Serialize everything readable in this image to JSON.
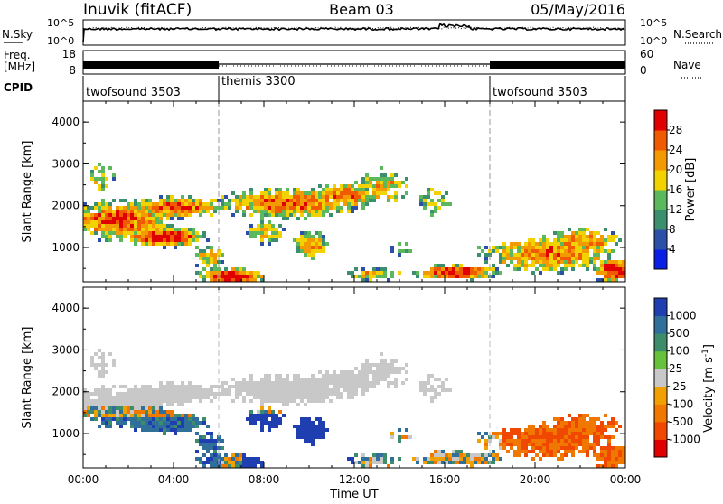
{
  "header": {
    "station": "Inuvik (fitACF)",
    "beam": "Beam 03",
    "date": "05/May/2016"
  },
  "noise_panel": {
    "left_label": "N.Sky",
    "right_label": "N.Search",
    "left_ticks": [
      "10^5",
      "10^0"
    ],
    "right_ticks": [
      "10^5",
      "10^0"
    ]
  },
  "freq_panel": {
    "left_label_line1": "Freq.",
    "left_label_line2": "[MHz]",
    "right_label": "Nave",
    "left_ticks": [
      "18",
      "8"
    ],
    "right_ticks": [
      "60",
      "0"
    ]
  },
  "cpid": {
    "label": "CPID",
    "segments": [
      {
        "name": "twofsound 3503",
        "start_hour": 0,
        "end_hour": 6
      },
      {
        "name": "themis 3300",
        "start_hour": 6,
        "end_hour": 18
      },
      {
        "name": "twofsound 3503",
        "start_hour": 18,
        "end_hour": 24
      }
    ]
  },
  "chart_data": [
    {
      "type": "heatmap",
      "title": "Power",
      "xlabel": "",
      "ylabel": "Slant Range [km]",
      "x_range_hours": [
        0,
        24
      ],
      "ylim": [
        180,
        4500
      ],
      "y_ticks": [
        "1000",
        "2000",
        "3000",
        "4000"
      ],
      "colorbar": {
        "label": "Power [dB]",
        "ticks": [
          "4",
          "8",
          "12",
          "16",
          "20",
          "24",
          "28"
        ],
        "colors": [
          "#0a1fe6",
          "#2c4fa8",
          "#3b8f6e",
          "#5cb85c",
          "#f2d200",
          "#f39a00",
          "#f05a00",
          "#e00000"
        ]
      }
    },
    {
      "type": "heatmap",
      "title": "Velocity",
      "xlabel": "Time UT",
      "ylabel": "Slant Range [km]",
      "x_range_hours": [
        0,
        24
      ],
      "ylim": [
        180,
        4500
      ],
      "x_ticks": [
        "00:00",
        "04:00",
        "08:00",
        "12:00",
        "16:00",
        "20:00",
        "00:00"
      ],
      "y_ticks": [
        "1000",
        "2000",
        "3000",
        "4000"
      ],
      "colorbar": {
        "label": "Velocity [m s",
        "label_sup": "-1",
        "label_end": "]",
        "ticks": [
          "1000",
          "500",
          "100",
          "25",
          "-25",
          "-100",
          "-500",
          "-1000"
        ],
        "colors": [
          "#1f3fb0",
          "#2f6f9a",
          "#3d8c6a",
          "#66c23a",
          "#c8c8c8",
          "#f0a000",
          "#f07800",
          "#f04800",
          "#e00000"
        ]
      }
    }
  ]
}
